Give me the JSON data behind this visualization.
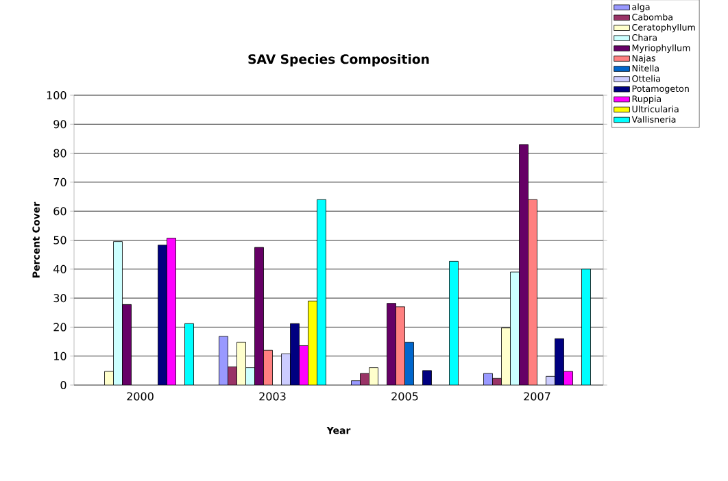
{
  "chart_data": {
    "type": "bar",
    "title": "SAV Species Composition",
    "xlabel": "Year",
    "ylabel": "Percent Cover",
    "categories": [
      "2000",
      "2003",
      "2005",
      "2007"
    ],
    "ylim": [
      0,
      100
    ],
    "yticks": [
      0,
      10,
      20,
      30,
      40,
      50,
      60,
      70,
      80,
      90,
      100
    ],
    "grid": "y",
    "legend": "top right",
    "series": [
      {
        "name": "alga",
        "color": "#9999ff",
        "values": [
          null,
          16.8,
          1.5,
          4
        ]
      },
      {
        "name": "Cabomba",
        "color": "#993366",
        "values": [
          null,
          6.3,
          4,
          2.3
        ]
      },
      {
        "name": "Ceratophyllum",
        "color": "#ffffcc",
        "values": [
          4.7,
          14.8,
          6,
          19.7
        ]
      },
      {
        "name": "Chara",
        "color": "#ccffff",
        "values": [
          49.5,
          6,
          null,
          39
        ]
      },
      {
        "name": "Myriophyllum",
        "color": "#660066",
        "values": [
          27.8,
          47.5,
          28.2,
          83
        ]
      },
      {
        "name": "Najas",
        "color": "#ff8080",
        "values": [
          null,
          12,
          27,
          64
        ]
      },
      {
        "name": "Nitella",
        "color": "#0066cc",
        "values": [
          null,
          null,
          14.8,
          null
        ]
      },
      {
        "name": "Ottelia",
        "color": "#ccccff",
        "values": [
          null,
          10.8,
          null,
          3
        ]
      },
      {
        "name": "Potamogeton",
        "color": "#000080",
        "values": [
          48.3,
          21.2,
          5,
          16
        ]
      },
      {
        "name": "Ruppia",
        "color": "#ff00ff",
        "values": [
          50.7,
          13.6,
          null,
          4.7
        ]
      },
      {
        "name": "Ultricularia",
        "color": "#ffff00",
        "values": [
          null,
          29,
          null,
          null
        ]
      },
      {
        "name": "Vallisneria",
        "color": "#00ffff",
        "values": [
          21.2,
          64,
          42.7,
          40
        ]
      }
    ]
  }
}
